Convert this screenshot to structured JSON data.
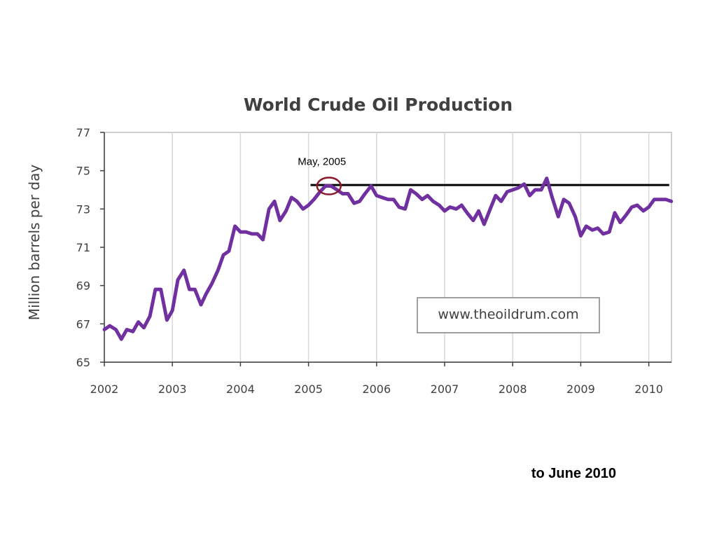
{
  "chart_data": {
    "type": "line",
    "title": "World Crude Oil Production",
    "ylabel": "Million barrels per day",
    "xlabel": "",
    "xlim": [
      2002,
      2010.33
    ],
    "ylim": [
      65,
      77
    ],
    "yticks": [
      "65",
      "67",
      "69",
      "71",
      "73",
      "75",
      "77"
    ],
    "xticks": [
      "2002",
      "2003",
      "2004",
      "2005",
      "2006",
      "2007",
      "2008",
      "2009",
      "2010"
    ],
    "grid": "vertical",
    "series": [
      {
        "color": "#7030a0",
        "x": [
          2002.0,
          2002.08,
          2002.17,
          2002.25,
          2002.33,
          2002.42,
          2002.5,
          2002.58,
          2002.67,
          2002.75,
          2002.83,
          2002.92,
          2003.0,
          2003.08,
          2003.17,
          2003.25,
          2003.33,
          2003.42,
          2003.5,
          2003.58,
          2003.67,
          2003.75,
          2003.83,
          2003.92,
          2004.0,
          2004.08,
          2004.17,
          2004.25,
          2004.33,
          2004.42,
          2004.5,
          2004.58,
          2004.67,
          2004.75,
          2004.83,
          2004.92,
          2005.0,
          2005.08,
          2005.17,
          2005.25,
          2005.33,
          2005.42,
          2005.5,
          2005.58,
          2005.67,
          2005.75,
          2005.83,
          2005.92,
          2006.0,
          2006.08,
          2006.17,
          2006.25,
          2006.33,
          2006.42,
          2006.5,
          2006.58,
          2006.67,
          2006.75,
          2006.83,
          2006.92,
          2007.0,
          2007.08,
          2007.17,
          2007.25,
          2007.33,
          2007.42,
          2007.5,
          2007.58,
          2007.67,
          2007.75,
          2007.83,
          2007.92,
          2008.0,
          2008.08,
          2008.17,
          2008.25,
          2008.33,
          2008.42,
          2008.5,
          2008.58,
          2008.67,
          2008.75,
          2008.83,
          2008.92,
          2009.0,
          2009.08,
          2009.17,
          2009.25,
          2009.33,
          2009.42,
          2009.5,
          2009.58,
          2009.67,
          2009.75,
          2009.83,
          2009.92,
          2010.0,
          2010.08,
          2010.17,
          2010.25,
          2010.33
        ],
        "values": [
          66.7,
          66.9,
          66.7,
          66.2,
          66.7,
          66.6,
          67.1,
          66.8,
          67.4,
          68.8,
          68.8,
          67.2,
          67.7,
          69.3,
          69.8,
          68.8,
          68.8,
          68.0,
          68.6,
          69.1,
          69.8,
          70.6,
          70.8,
          72.1,
          71.8,
          71.8,
          71.7,
          71.7,
          71.4,
          73.0,
          73.4,
          72.4,
          72.9,
          73.6,
          73.4,
          73.0,
          73.2,
          73.5,
          73.9,
          74.2,
          74.2,
          74.0,
          73.8,
          73.8,
          73.3,
          73.4,
          73.8,
          74.2,
          73.7,
          73.6,
          73.5,
          73.5,
          73.1,
          73.0,
          74.0,
          73.8,
          73.5,
          73.7,
          73.4,
          73.2,
          72.9,
          73.1,
          73.0,
          73.2,
          72.8,
          72.4,
          72.9,
          72.2,
          73.0,
          73.7,
          73.4,
          73.9,
          74.0,
          74.1,
          74.3,
          73.7,
          74.0,
          74.0,
          74.6,
          73.6,
          72.6,
          73.5,
          73.3,
          72.6,
          71.6,
          72.1,
          71.9,
          72.0,
          71.7,
          71.8,
          72.8,
          72.3,
          72.7,
          73.1,
          73.2,
          72.9,
          73.1,
          73.5,
          73.5,
          73.5,
          73.4
        ]
      }
    ],
    "reference_line": {
      "y": 74.25,
      "x_from": 2005.03,
      "x_to": 2010.3,
      "color": "#000000"
    },
    "annotation": {
      "text": "May, 2005",
      "x": 2005.3,
      "y": 74.2,
      "marker_color": "#8b1a2b"
    },
    "watermark": "www.theoildrum.com"
  },
  "footer_note": "to June 2010"
}
